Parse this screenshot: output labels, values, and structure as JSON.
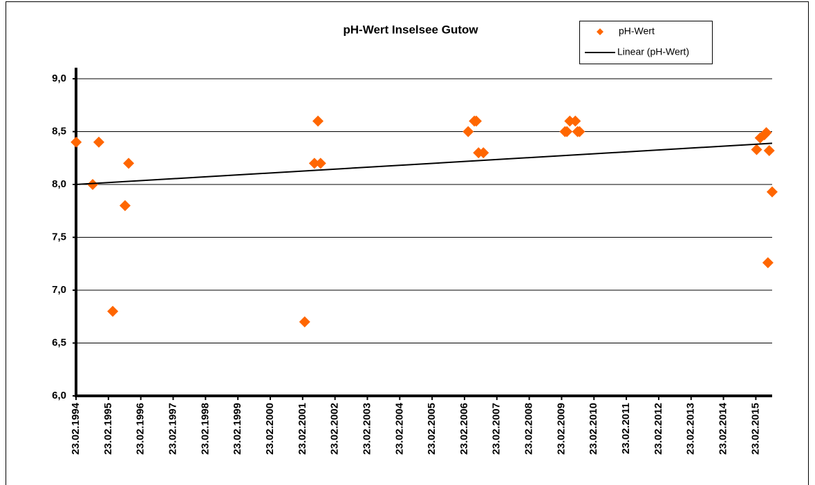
{
  "chart_data": {
    "type": "scatter",
    "title": "pH-Wert Inselsee Gutow",
    "xlim": [
      1994.146,
      2015.65
    ],
    "ylim": [
      6,
      9
    ],
    "xticks": [
      {
        "value": 1994.146,
        "label": "23.02.1994"
      },
      {
        "value": 1995.146,
        "label": "23.02.1995"
      },
      {
        "value": 1996.146,
        "label": "23.02.1996"
      },
      {
        "value": 1997.146,
        "label": "23.02.1997"
      },
      {
        "value": 1998.146,
        "label": "23.02.1998"
      },
      {
        "value": 1999.146,
        "label": "23.02.1999"
      },
      {
        "value": 2000.146,
        "label": "23.02.2000"
      },
      {
        "value": 2001.146,
        "label": "23.02.2001"
      },
      {
        "value": 2002.146,
        "label": "23.02.2002"
      },
      {
        "value": 2003.146,
        "label": "23.02.2003"
      },
      {
        "value": 2004.146,
        "label": "23.02.2004"
      },
      {
        "value": 2005.146,
        "label": "23.02.2005"
      },
      {
        "value": 2006.146,
        "label": "23.02.2006"
      },
      {
        "value": 2007.146,
        "label": "23.02.2007"
      },
      {
        "value": 2008.146,
        "label": "23.02.2008"
      },
      {
        "value": 2009.146,
        "label": "23.02.2009"
      },
      {
        "value": 2010.146,
        "label": "23.02.2010"
      },
      {
        "value": 2011.146,
        "label": "23.02.2011"
      },
      {
        "value": 2012.146,
        "label": "23.02.2012"
      },
      {
        "value": 2013.146,
        "label": "23.02.2013"
      },
      {
        "value": 2014.146,
        "label": "23.02.2014"
      },
      {
        "value": 2015.146,
        "label": "23.02.2015"
      }
    ],
    "yticks": [
      {
        "value": 6,
        "label": "6,0"
      },
      {
        "value": 6.5,
        "label": "6,5"
      },
      {
        "value": 7,
        "label": "7,0"
      },
      {
        "value": 7.5,
        "label": "7,5"
      },
      {
        "value": 8,
        "label": "8,0"
      },
      {
        "value": 8.5,
        "label": "8,5"
      },
      {
        "value": 9,
        "label": "9,0"
      }
    ],
    "grid": true,
    "series": [
      {
        "name": "pH-Wert",
        "color": "#ff6600",
        "x": [
          1994.15,
          1994.66,
          1994.85,
          1995.28,
          1995.66,
          1995.77,
          2001.21,
          2001.51,
          2001.62,
          2001.7,
          2006.26,
          2006.45,
          2006.51,
          2006.58,
          2006.73,
          2009.25,
          2009.31,
          2009.4,
          2009.57,
          2009.64,
          2009.7,
          2015.17,
          2015.28,
          2015.41,
          2015.47,
          2015.52,
          2015.56,
          2015.65
        ],
        "values": [
          8.4,
          8.0,
          8.4,
          6.8,
          7.8,
          8.2,
          6.7,
          8.2,
          8.6,
          8.2,
          8.5,
          8.6,
          8.6,
          8.3,
          8.3,
          8.5,
          8.5,
          8.6,
          8.6,
          8.5,
          8.5,
          8.33,
          8.44,
          8.47,
          8.49,
          7.26,
          8.32,
          7.93
        ]
      },
      {
        "name": "Linear (pH-Wert)",
        "color": "#000000",
        "type": "line",
        "x": [
          1994.146,
          2015.65
        ],
        "values": [
          8.0,
          8.39
        ]
      }
    ]
  }
}
